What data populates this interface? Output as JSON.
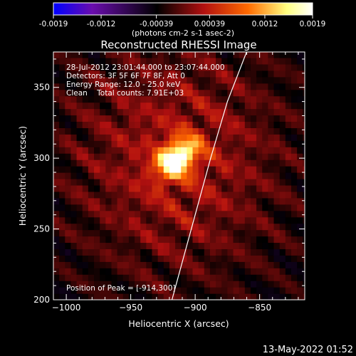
{
  "chart_data": {
    "type": "heatmap",
    "title": "Reconstructed RHESSI Image",
    "xlabel": "Heliocentric X (arcsec)",
    "ylabel": "Heliocentric Y (arcsec)",
    "xlim": [
      -1010,
      -815
    ],
    "ylim": [
      200,
      375
    ],
    "x_ticks": [
      -1000,
      -950,
      -900,
      -850
    ],
    "y_ticks": [
      200,
      250,
      300,
      350
    ],
    "colorbar": {
      "min": -0.0019,
      "max": 0.0019,
      "ticks": [
        "-0.0019",
        "-0.0012",
        "-0.00039",
        "0.00039",
        "0.0012",
        "0.0019"
      ],
      "tick_values": [
        -0.0019,
        -0.0012,
        -0.00039,
        0.00039,
        0.0012,
        0.0019
      ],
      "unit_label": "(photons cm-2 s-1 asec-2)",
      "stops": [
        "#0000ff",
        "#6a0dad",
        "#000000",
        "#b21010",
        "#ff6a00",
        "#ffff80",
        "#ffffff"
      ]
    },
    "annotations": [
      "28-Jul-2012 23:01:44.000 to 23:07:44.000",
      "Detectors: 3F 5F 6F 7F 8F, Att 0",
      "Energy Range: 12.0 - 25.0 keV",
      "Clean    Total counts: 7.91E+03"
    ],
    "peak_label": "Position of Peak = [-914,300]",
    "peak": [
      -914,
      300
    ],
    "limb": [
      [
        -918,
        200
      ],
      [
        -900,
        260
      ],
      [
        -888,
        300
      ],
      [
        -875,
        340
      ],
      [
        -858,
        380
      ]
    ]
  },
  "footer": {
    "timestamp": "13-May-2022 01:52"
  }
}
